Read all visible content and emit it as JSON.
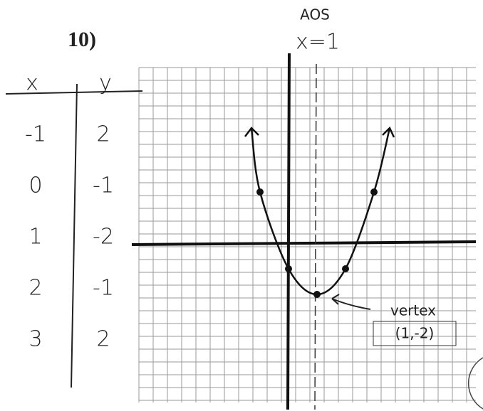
{
  "problem": "10)",
  "table": {
    "headers": [
      "x",
      "y"
    ],
    "rows": [
      [
        -1,
        2
      ],
      [
        0,
        -1
      ],
      [
        1,
        -2
      ],
      [
        2,
        -1
      ],
      [
        3,
        2
      ]
    ]
  },
  "annotations": {
    "axis_of_symmetry": "AOS",
    "axis_equation": "x=1",
    "vertex_label": "vertex",
    "vertex_point": "(1,-2)"
  }
}
